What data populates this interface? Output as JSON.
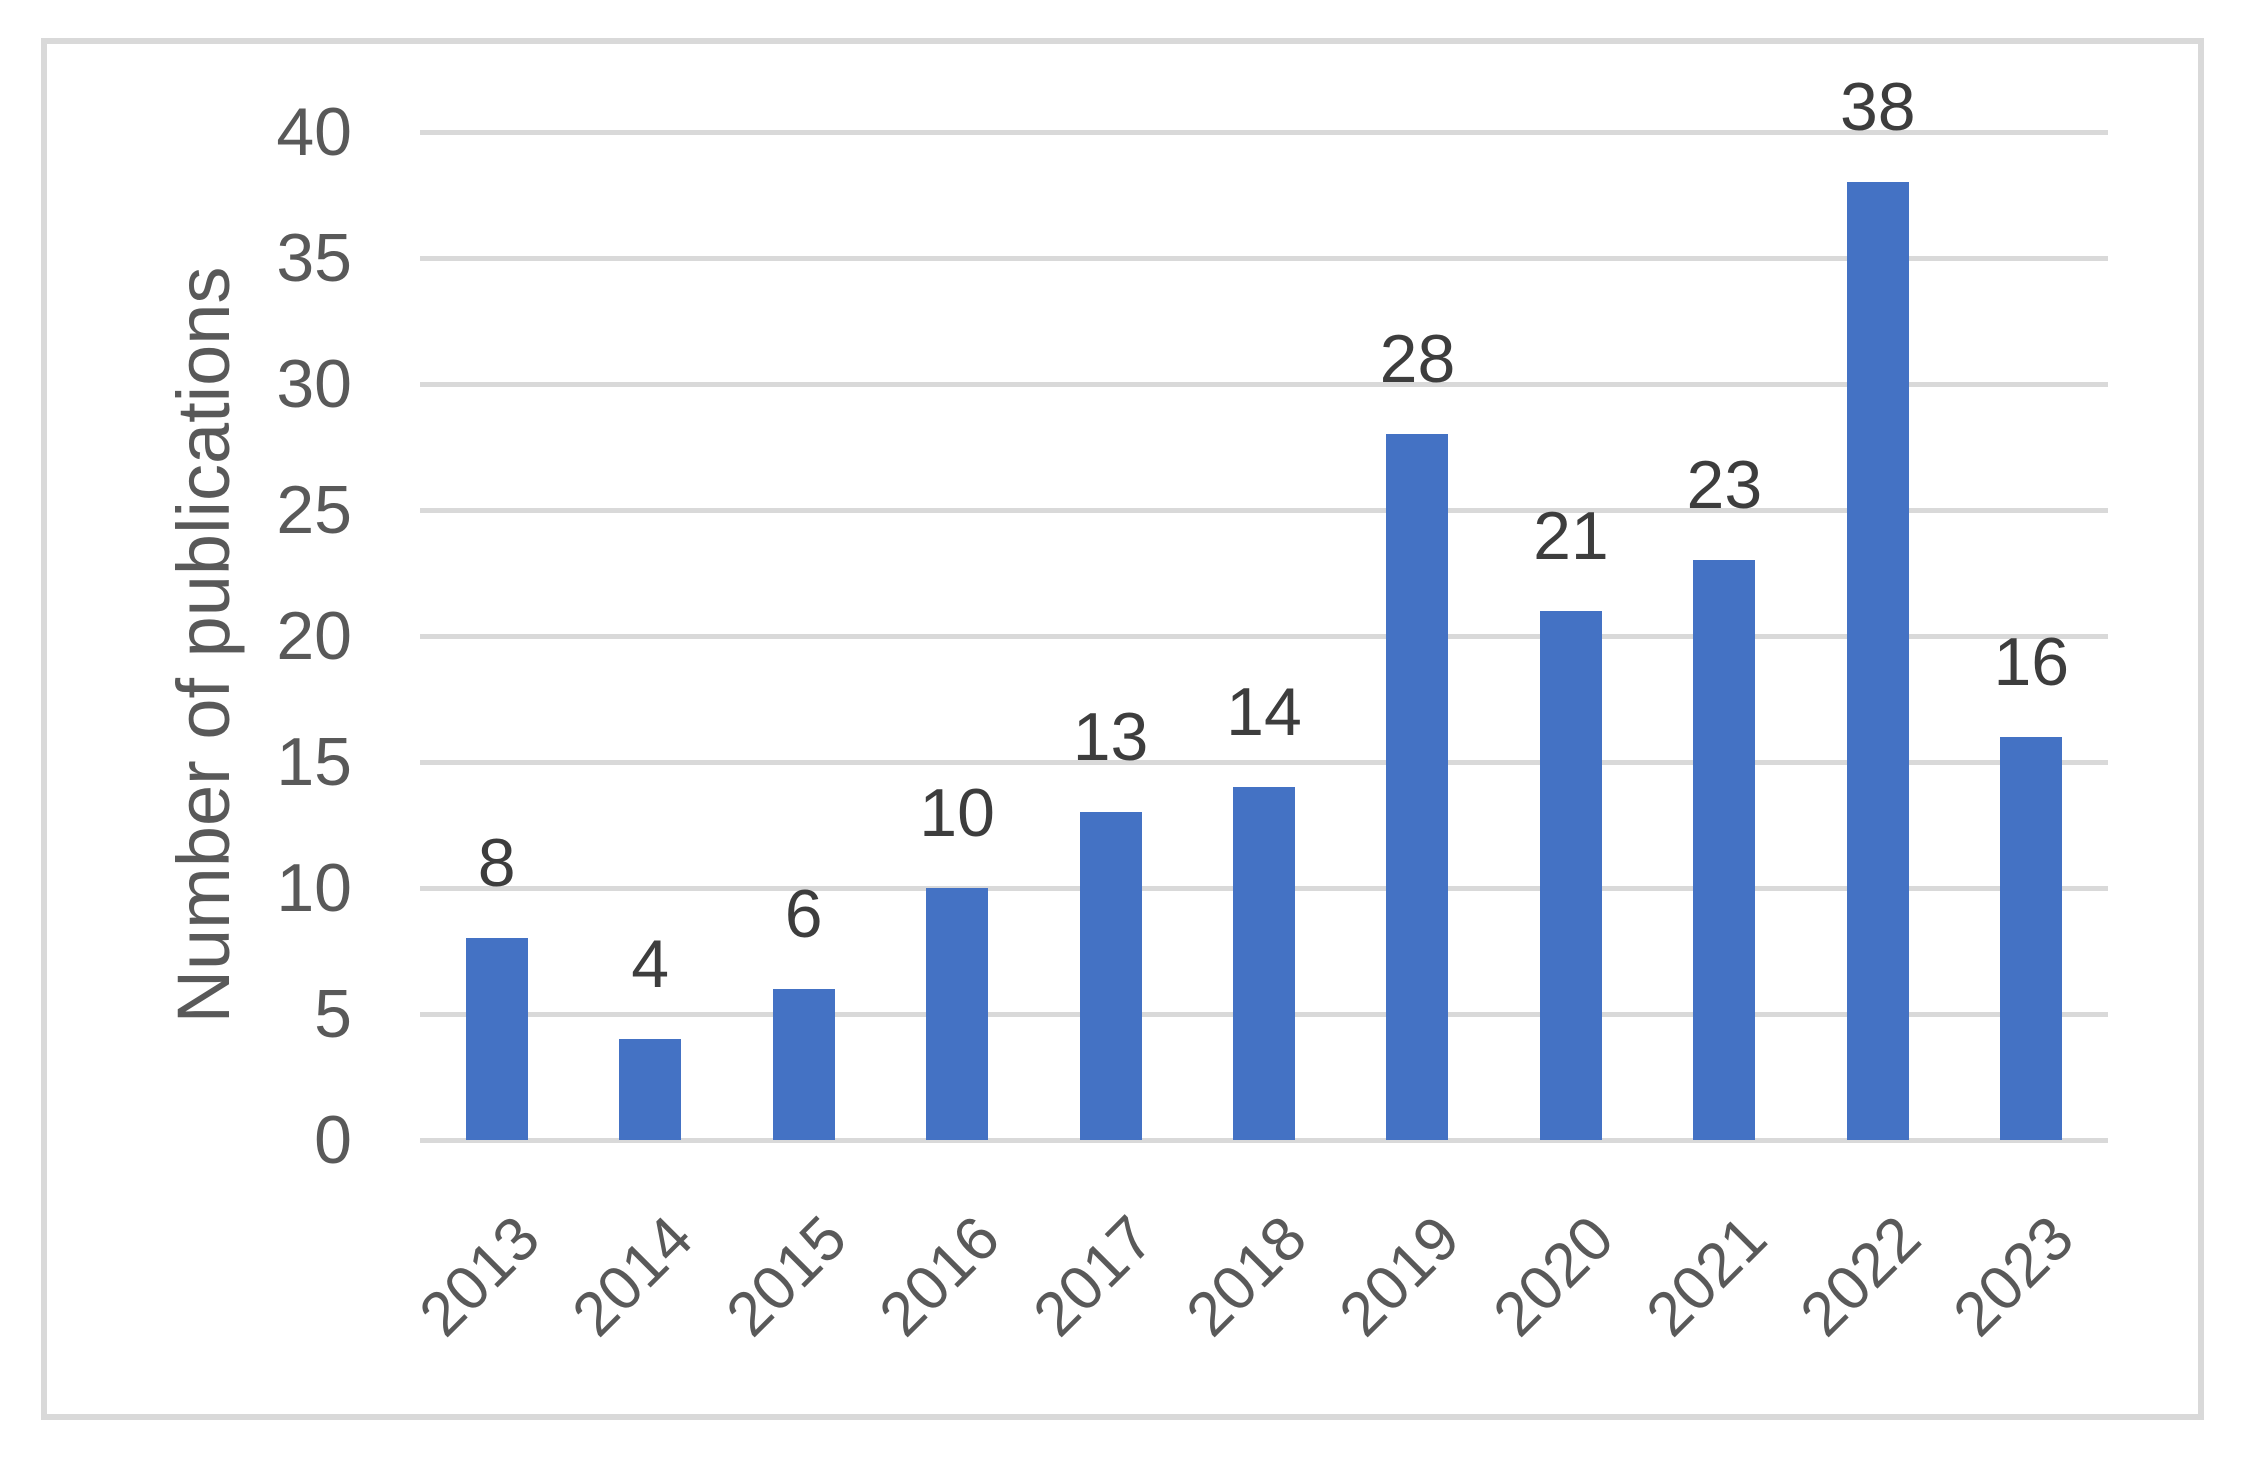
{
  "chart_data": {
    "type": "bar",
    "title": "",
    "xlabel": "",
    "ylabel": "Number of publications",
    "categories": [
      "2013",
      "2014",
      "2015",
      "2016",
      "2017",
      "2018",
      "2019",
      "2020",
      "2021",
      "2022",
      "2023"
    ],
    "values": [
      8,
      4,
      6,
      10,
      13,
      14,
      28,
      21,
      23,
      38,
      16
    ],
    "data_labels": [
      "8",
      "4",
      "6",
      "10",
      "13",
      "14",
      "28",
      "21",
      "23",
      "38",
      "16"
    ],
    "yticks": [
      0,
      5,
      10,
      15,
      20,
      25,
      30,
      35,
      40
    ],
    "ylim": [
      0,
      40
    ],
    "grid": true,
    "legend": false,
    "x_tick_rotation_deg": 45,
    "colors": {
      "bar": "#4472c4",
      "gridline": "#d9d9d9",
      "frame_border": "#d9d9d9",
      "axis_text": "#595959",
      "data_label_text": "#3d3d3d",
      "background": "#ffffff"
    }
  }
}
